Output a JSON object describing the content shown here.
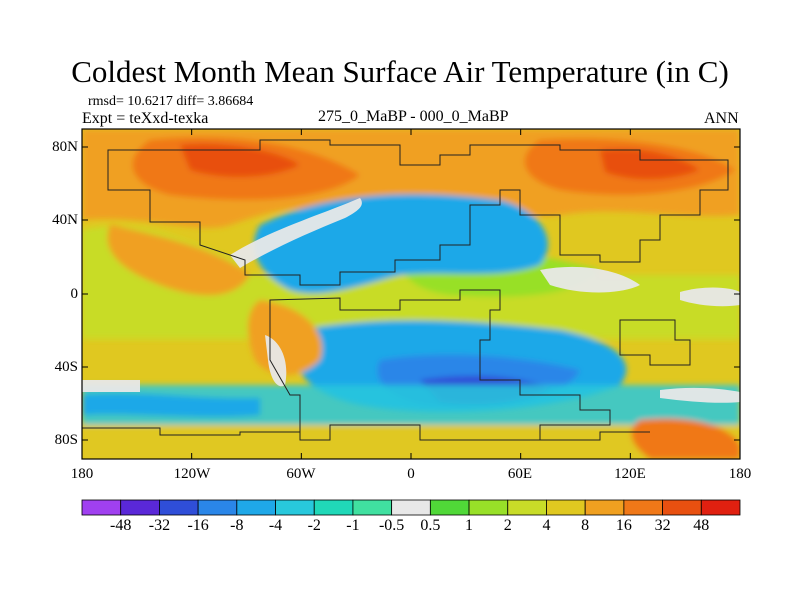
{
  "header": {
    "title": "Coldest Month Mean Surface Air Temperature (in C)",
    "stats": "rmsd= 10.6217 diff= 3.86684",
    "expt": "Expt = teXxd-texka",
    "comparison": "275_0_MaBP - 000_0_MaBP",
    "season": "ANN"
  },
  "map": {
    "lat_ticks": [
      "80N",
      "40N",
      "0",
      "40S",
      "80S"
    ],
    "lon_ticks": [
      "180",
      "120W",
      "60W",
      "0",
      "60E",
      "120E",
      "180"
    ]
  },
  "colorbar": {
    "labels": [
      "-48",
      "-32",
      "-16",
      "-8",
      "-4",
      "-2",
      "-1",
      "-0.5",
      "0.5",
      "1",
      "2",
      "4",
      "8",
      "16",
      "32",
      "48"
    ],
    "colors": [
      "#a040f0",
      "#5a28d8",
      "#2f4ed8",
      "#2a86e8",
      "#1fa8e8",
      "#28c8dc",
      "#20d8b8",
      "#40e0a0",
      "#e8e8e8",
      "#50d838",
      "#98e028",
      "#c8dc28",
      "#e0c820",
      "#f0a020",
      "#f07818",
      "#e85010",
      "#e02010"
    ]
  }
}
